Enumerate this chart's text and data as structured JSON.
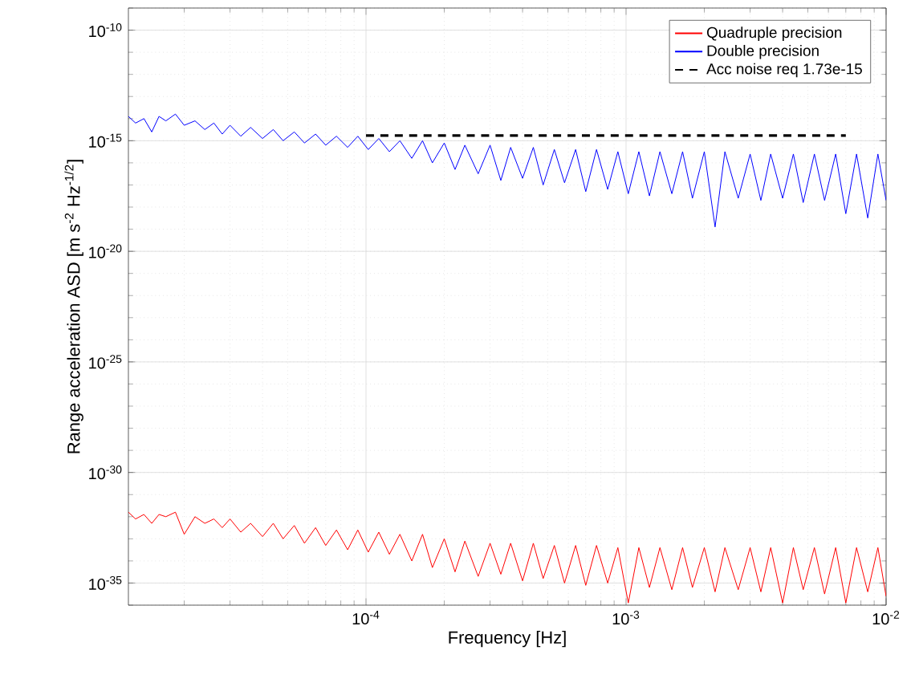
{
  "chart_data": {
    "type": "line",
    "xlabel": "Frequency [Hz]",
    "ylabel": "Range acceleration ASD [m s$^{-2}$ Hz$^{-1/2}$]",
    "log": "xy",
    "grid": true,
    "legend": "top right",
    "line_style": "solid",
    "xlim": [
      1.22e-05,
      0.01
    ],
    "ylim": [
      1e-36,
      1e-09
    ],
    "xticks": [
      {
        "value": 0.0001,
        "label": "10$^{-4}$"
      },
      {
        "value": 0.001,
        "label": "10$^{-3}$"
      },
      {
        "value": 0.01,
        "label": "10$^{-2}$"
      }
    ],
    "yticks": [
      {
        "value": 1e-35,
        "label": "10$^{-35}$"
      },
      {
        "value": 1e-30,
        "label": "10$^{-30}$"
      },
      {
        "value": 1e-25,
        "label": "10$^{-25}$"
      },
      {
        "value": 1e-20,
        "label": "10$^{-20}$"
      },
      {
        "value": 1e-15,
        "label": "10$^{-15}$"
      },
      {
        "value": 1e-10,
        "label": "10$^{-10}$"
      }
    ],
    "x": [
      1.22e-05,
      1.3e-05,
      1.4e-05,
      1.5e-05,
      1.6e-05,
      1.7e-05,
      1.85e-05,
      2e-05,
      2.2e-05,
      2.4e-05,
      2.6e-05,
      2.8e-05,
      3e-05,
      3.3e-05,
      3.6e-05,
      4e-05,
      4.4e-05,
      4.8e-05,
      5.3e-05,
      5.8e-05,
      6.4e-05,
      7e-05,
      7.7e-05,
      8.5e-05,
      9.3e-05,
      0.000102,
      0.000112,
      0.000123,
      0.000135,
      0.00015,
      0.000165,
      0.00018,
      0.0002,
      0.00022,
      0.00024,
      0.00027,
      0.0003,
      0.00033,
      0.00036,
      0.0004,
      0.00044,
      0.00048,
      0.00053,
      0.00058,
      0.00064,
      0.0007,
      0.00077,
      0.00085,
      0.00093,
      0.00102,
      0.00112,
      0.00123,
      0.00135,
      0.0015,
      0.00165,
      0.0018,
      0.002,
      0.0022,
      0.0024,
      0.0027,
      0.003,
      0.0033,
      0.0036,
      0.004,
      0.0044,
      0.0048,
      0.0053,
      0.0058,
      0.0064,
      0.007,
      0.0077,
      0.0085,
      0.0093,
      0.01
    ],
    "series": [
      {
        "name": "Quadruple precision",
        "color": "#ff0000",
        "values": [
          1.6e-32,
          7.9e-33,
          1.26e-32,
          5e-33,
          1.26e-32,
          1e-32,
          1.6e-32,
          1.6e-33,
          1e-32,
          5e-33,
          7.9e-33,
          3.2e-33,
          7.9e-33,
          2e-33,
          5e-33,
          1.26e-33,
          5e-33,
          1e-33,
          4e-33,
          6.3e-34,
          3.2e-33,
          5e-34,
          2.5e-33,
          3.2e-34,
          2.5e-33,
          2.5e-34,
          2e-33,
          2e-34,
          1.6e-33,
          1e-34,
          1.6e-33,
          5e-35,
          1e-33,
          3.2e-35,
          7.9e-34,
          2e-35,
          6.3e-34,
          2.5e-35,
          6.3e-34,
          1.26e-35,
          6.3e-34,
          1.6e-35,
          5e-34,
          1e-35,
          5e-34,
          7.9e-36,
          5e-34,
          1e-35,
          4e-34,
          1.26e-36,
          4e-34,
          6.3e-36,
          4e-34,
          5e-36,
          4e-34,
          6.3e-36,
          4e-34,
          4e-36,
          4e-34,
          5e-36,
          4e-34,
          4e-36,
          4e-34,
          1.26e-36,
          4e-34,
          5e-36,
          4e-34,
          3.2e-36,
          4e-34,
          1.26e-36,
          4e-34,
          4e-36,
          4e-34,
          2.5e-36
        ]
      },
      {
        "name": "Double precision",
        "color": "#0000ff",
        "values": [
          1.26e-14,
          6.3e-15,
          1e-14,
          2.5e-15,
          1.26e-14,
          7.9e-15,
          1.6e-14,
          5e-15,
          7.9e-15,
          3.2e-15,
          6.3e-15,
          2e-15,
          5e-15,
          1.6e-15,
          4e-15,
          1.26e-15,
          3.2e-15,
          1e-15,
          2.5e-15,
          7.9e-16,
          2e-15,
          6.3e-16,
          1.6e-15,
          5e-16,
          1.6e-15,
          4e-16,
          1.26e-15,
          3.2e-16,
          1e-15,
          1.6e-16,
          1e-15,
          1e-16,
          7.9e-16,
          5e-17,
          6.3e-16,
          3.2e-17,
          6.3e-16,
          1.6e-17,
          5e-16,
          2e-17,
          5e-16,
          1e-17,
          4e-16,
          1.26e-17,
          4e-16,
          5e-18,
          4e-16,
          6.3e-18,
          3.2e-16,
          4e-18,
          3.2e-16,
          3.2e-18,
          3.2e-16,
          4e-18,
          3.2e-16,
          2.5e-18,
          3.2e-16,
          1.26e-19,
          3.2e-16,
          2.5e-18,
          2.5e-16,
          2e-18,
          2.5e-16,
          2.5e-18,
          2.5e-16,
          1.6e-18,
          2.5e-16,
          2e-18,
          2.5e-16,
          5e-19,
          2.5e-16,
          3.2e-19,
          2.5e-16,
          2e-18
        ]
      },
      {
        "name": "Acc noise req 1.73e-15",
        "color": "#000000",
        "line_style": "dashed",
        "x": [
          0.0001,
          0.007
        ],
        "values": [
          1.73e-15,
          1.73e-15
        ]
      }
    ]
  }
}
